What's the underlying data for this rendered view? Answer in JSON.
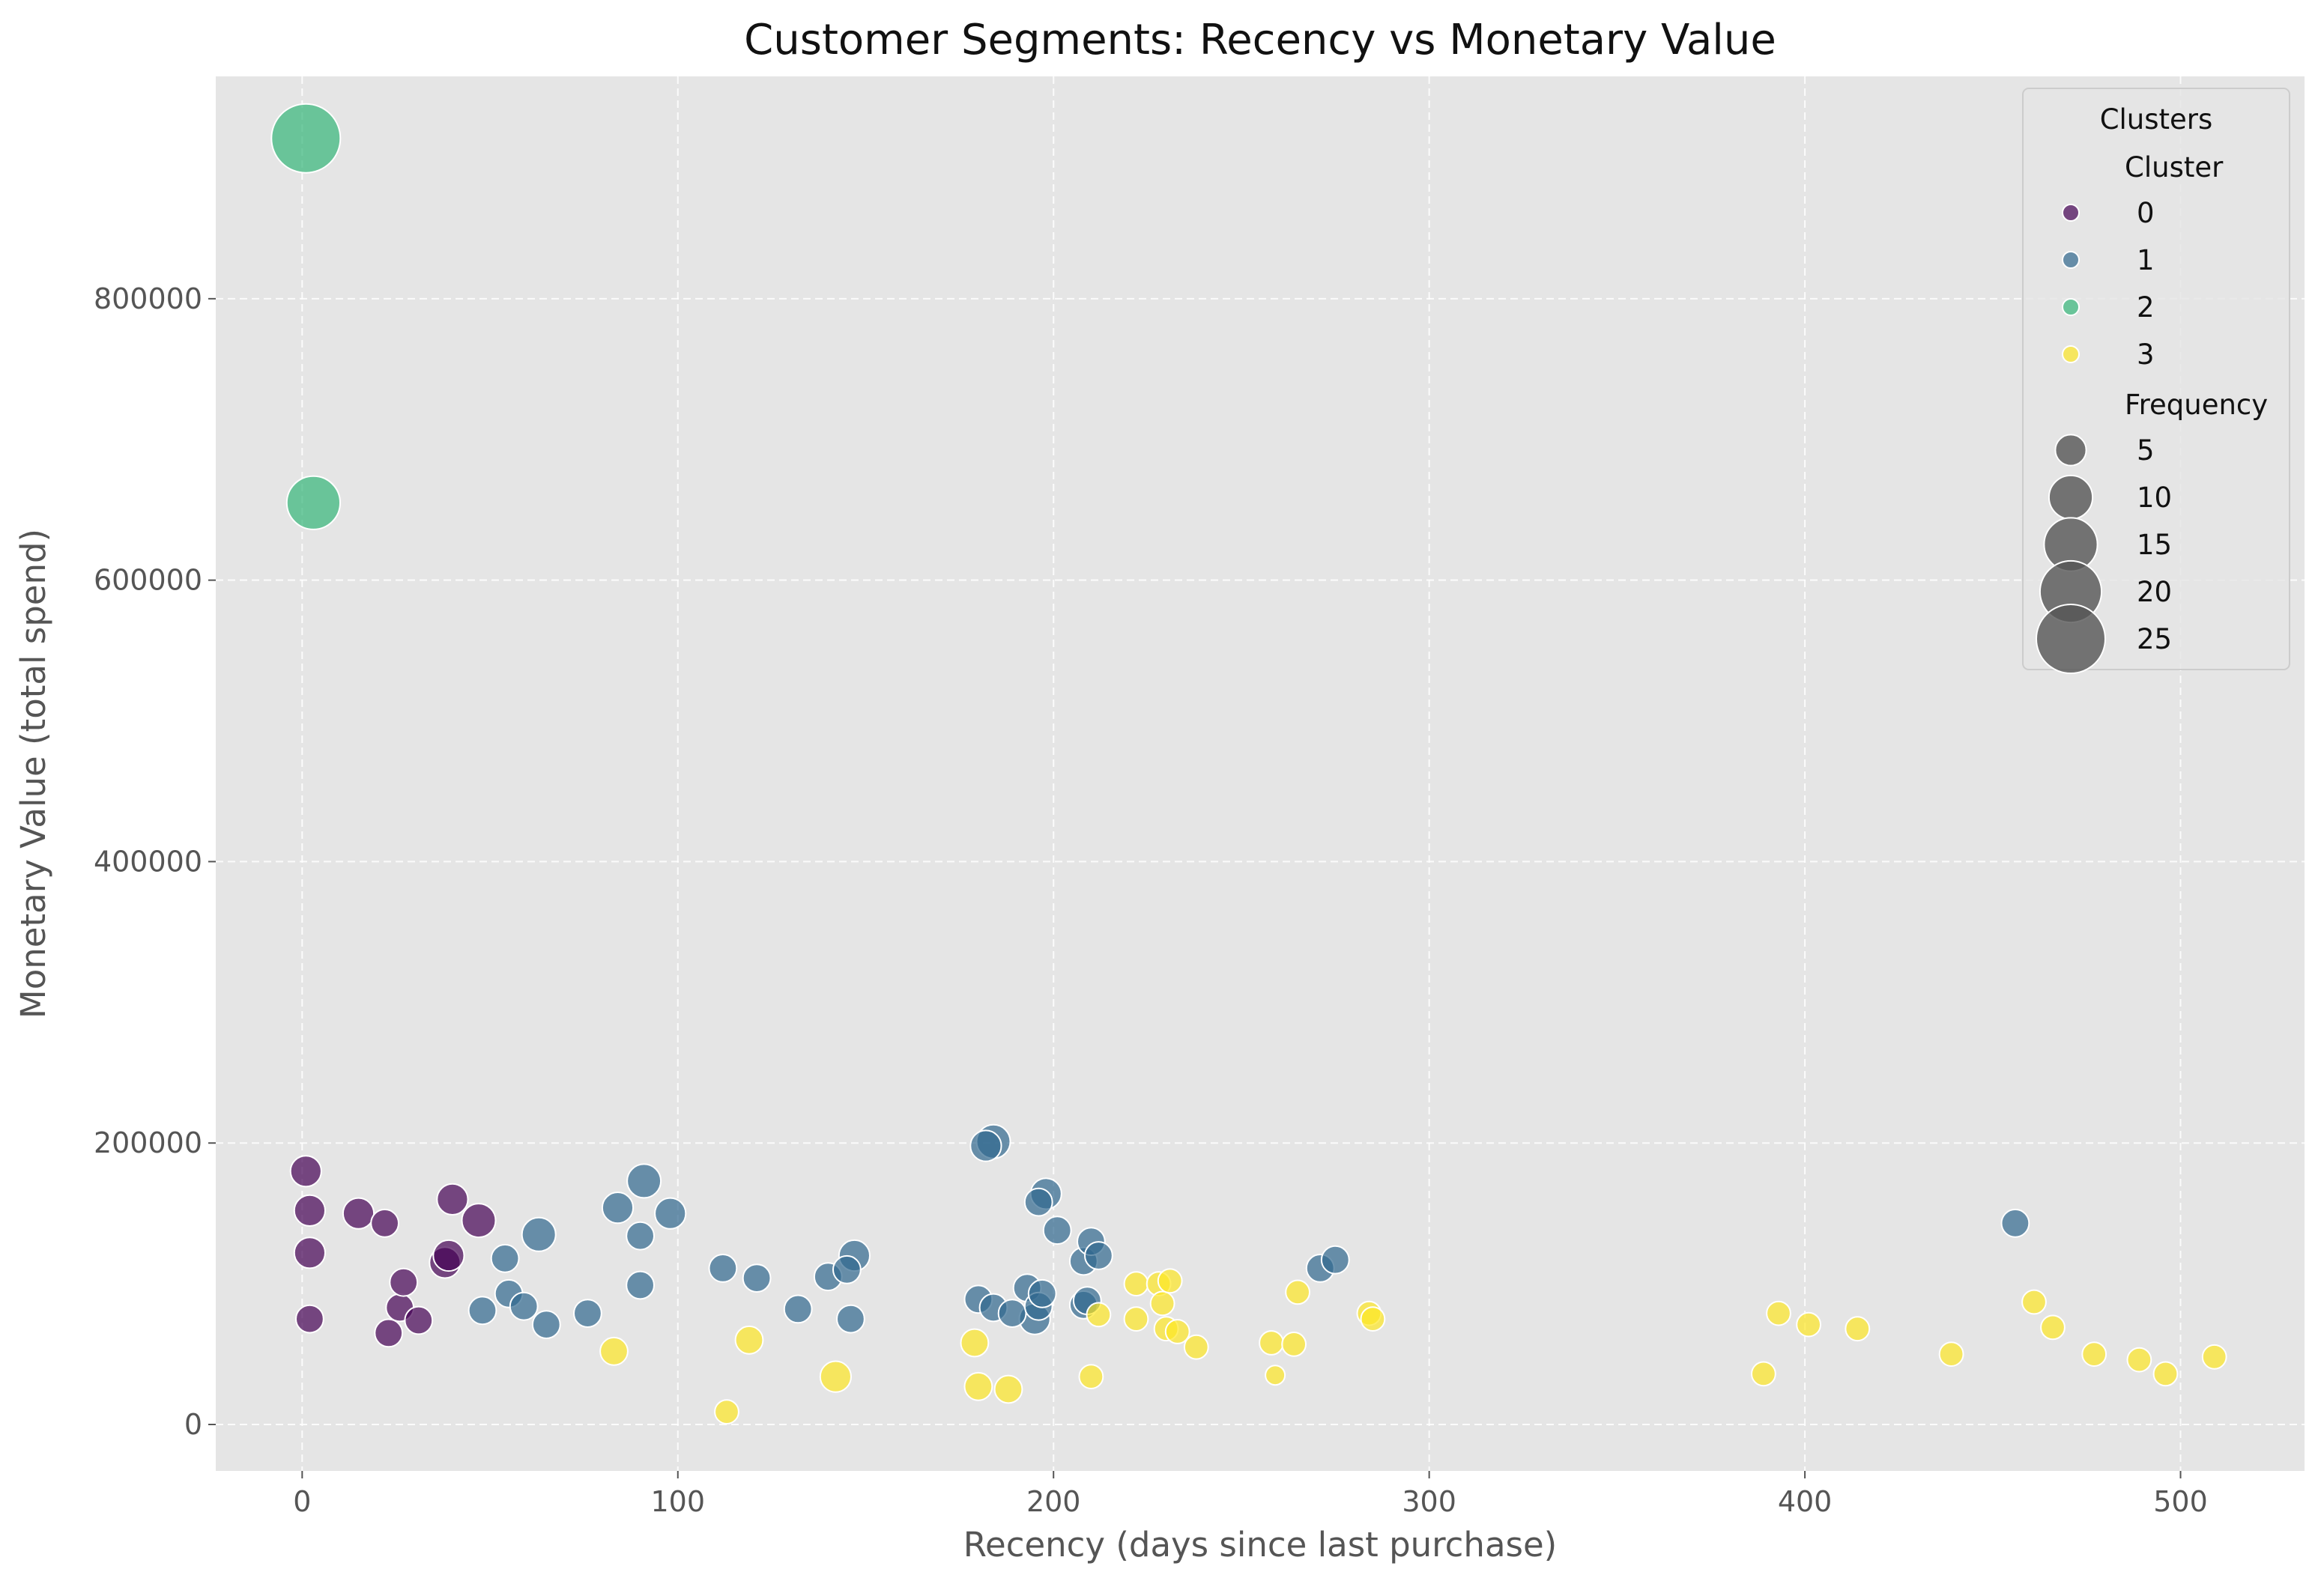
{
  "chart_data": {
    "type": "scatter",
    "title": "Customer Segments: Recency vs Monetary Value",
    "xlabel": "Recency (days since last purchase)",
    "ylabel": "Monetary Value (total spend)",
    "xlim": [
      -23,
      533
    ],
    "ylim": [
      -33000,
      958000
    ],
    "xticks": [
      0,
      100,
      200,
      300,
      400,
      500
    ],
    "yticks": [
      0,
      200000,
      400000,
      600000,
      800000
    ],
    "xtick_labels": [
      "0",
      "100",
      "200",
      "300",
      "400",
      "500"
    ],
    "ytick_labels": [
      "0",
      "200000",
      "400000",
      "600000",
      "800000"
    ],
    "grid": true,
    "style": "ggplot",
    "legend": {
      "title": "Clusters",
      "location": "top-right",
      "hue_title": "Cluster",
      "size_title": "Frequency",
      "clusters": [
        {
          "label": "0",
          "color": "#440154"
        },
        {
          "label": "1",
          "color": "#31688e"
        },
        {
          "label": "2",
          "color": "#35b779"
        },
        {
          "label": "3",
          "color": "#fde725"
        }
      ],
      "sizes": [
        {
          "label": "5",
          "value": 5
        },
        {
          "label": "10",
          "value": 10
        },
        {
          "label": "15",
          "value": 15
        },
        {
          "label": "20",
          "value": 20
        },
        {
          "label": "25",
          "value": 25
        }
      ]
    },
    "series": [
      {
        "name": "0",
        "color": "#440154",
        "points": [
          [
            1,
            180000,
            5
          ],
          [
            2,
            152000,
            5
          ],
          [
            2,
            122000,
            5
          ],
          [
            2,
            75000,
            4
          ],
          [
            15,
            150000,
            5
          ],
          [
            22,
            143000,
            4
          ],
          [
            23,
            65000,
            4
          ],
          [
            26,
            83000,
            4
          ],
          [
            27,
            101000,
            4
          ],
          [
            31,
            74000,
            4
          ],
          [
            38,
            115000,
            5
          ],
          [
            39,
            120000,
            5
          ],
          [
            40,
            160000,
            5
          ],
          [
            47,
            145000,
            6
          ]
        ]
      },
      {
        "name": "1",
        "color": "#31688e",
        "points": [
          [
            48,
            81000,
            4
          ],
          [
            54,
            118000,
            4
          ],
          [
            55,
            93000,
            4
          ],
          [
            59,
            84000,
            4
          ],
          [
            63,
            135000,
            6
          ],
          [
            65,
            71000,
            4
          ],
          [
            76,
            79000,
            4
          ],
          [
            84,
            154000,
            5
          ],
          [
            90,
            134000,
            4
          ],
          [
            90,
            99000,
            4
          ],
          [
            91,
            173000,
            6
          ],
          [
            98,
            150000,
            5
          ],
          [
            112,
            111000,
            4
          ],
          [
            121,
            104000,
            4
          ],
          [
            132,
            82000,
            4
          ],
          [
            140,
            105000,
            4
          ],
          [
            145,
            110000,
            4
          ],
          [
            146,
            75000,
            4
          ],
          [
            147,
            120000,
            5
          ],
          [
            180,
            89000,
            4
          ],
          [
            182,
            198000,
            5
          ],
          [
            184,
            201000,
            6
          ],
          [
            184,
            83000,
            4
          ],
          [
            189,
            79000,
            4
          ],
          [
            193,
            97000,
            4
          ],
          [
            195,
            75000,
            5
          ],
          [
            196,
            84000,
            4
          ],
          [
            196,
            158000,
            4
          ],
          [
            197,
            93000,
            4
          ],
          [
            198,
            164000,
            5
          ],
          [
            201,
            138000,
            4
          ],
          [
            208,
            85000,
            4
          ],
          [
            208,
            116000,
            4
          ],
          [
            209,
            88000,
            4
          ],
          [
            210,
            130000,
            4
          ],
          [
            212,
            120000,
            4
          ],
          [
            271,
            111000,
            4
          ],
          [
            275,
            117000,
            4
          ],
          [
            456,
            143000,
            4
          ]
        ]
      },
      {
        "name": "2",
        "color": "#35b779",
        "points": [
          [
            1,
            914000,
            25
          ],
          [
            3,
            655000,
            15
          ]
        ]
      },
      {
        "name": "3",
        "color": "#fde725",
        "points": [
          [
            83,
            52000,
            4
          ],
          [
            113,
            9000,
            3
          ],
          [
            119,
            60000,
            4
          ],
          [
            142,
            34000,
            5
          ],
          [
            179,
            58000,
            4
          ],
          [
            180,
            27000,
            4
          ],
          [
            188,
            25000,
            4
          ],
          [
            210,
            34000,
            3
          ],
          [
            212,
            78000,
            3
          ],
          [
            222,
            100000,
            3
          ],
          [
            222,
            75000,
            3
          ],
          [
            228,
            100000,
            3
          ],
          [
            229,
            86000,
            3
          ],
          [
            230,
            68000,
            3
          ],
          [
            231,
            102000,
            3
          ],
          [
            233,
            66000,
            3
          ],
          [
            238,
            55000,
            3
          ],
          [
            258,
            58000,
            3
          ],
          [
            259,
            35000,
            2
          ],
          [
            264,
            57000,
            3
          ],
          [
            265,
            94000,
            3
          ],
          [
            284,
            79000,
            3
          ],
          [
            285,
            75000,
            3
          ],
          [
            389,
            36000,
            3
          ],
          [
            393,
            79000,
            3
          ],
          [
            401,
            71000,
            3
          ],
          [
            414,
            68000,
            3
          ],
          [
            439,
            50000,
            3
          ],
          [
            461,
            87000,
            3
          ],
          [
            466,
            69000,
            3
          ],
          [
            477,
            50000,
            3
          ],
          [
            489,
            46000,
            3
          ],
          [
            496,
            36000,
            3
          ],
          [
            509,
            48000,
            3
          ]
        ]
      }
    ]
  }
}
